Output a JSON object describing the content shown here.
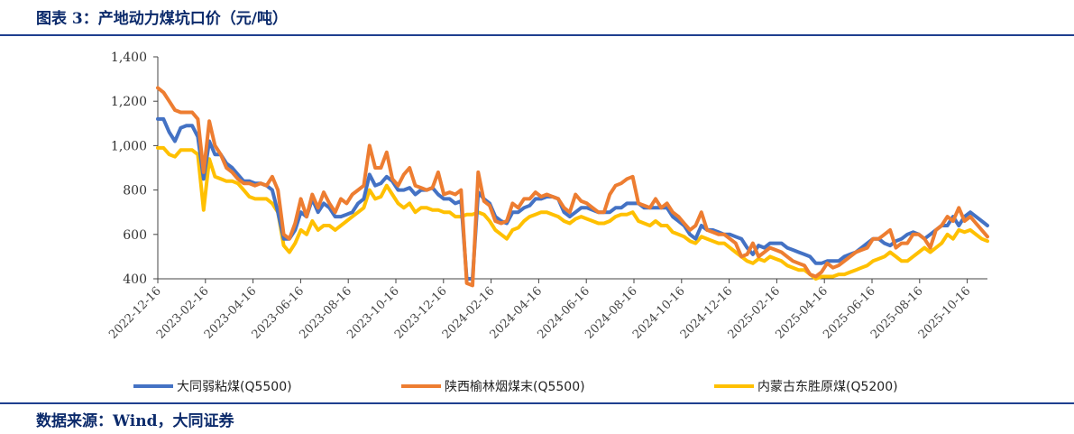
{
  "header": {
    "title": "图表 3：产地动力煤坑口价（元/吨）"
  },
  "footer": {
    "source": "数据来源：Wind，大同证券"
  },
  "chart_data": {
    "type": "line",
    "title": "产地动力煤坑口价（元/吨）",
    "xlabel": "",
    "ylabel": "元/吨",
    "ylim": [
      400,
      1400
    ],
    "yticks": [
      400,
      600,
      800,
      1000,
      1200,
      1400
    ],
    "ytick_labels": [
      "400",
      "600",
      "800",
      "1,000",
      "1,200",
      "1,400"
    ],
    "x_tick_labels": [
      "2022-12-16",
      "2023-02-16",
      "2023-04-16",
      "2023-06-16",
      "2023-08-16",
      "2023-10-16",
      "2023-12-16",
      "2024-02-16",
      "2024-04-16",
      "2024-06-16",
      "2024-08-16",
      "2024-10-16",
      "2024-12-16",
      "2025-02-16",
      "2025-04-16",
      "2025-06-16",
      "2025-08-16",
      "2025-10-16"
    ],
    "grid": false,
    "legend_position": "bottom",
    "series": [
      {
        "name": "大同弱粘煤(Q5500)",
        "color": "#4472c4",
        "values": [
          1120,
          1120,
          1060,
          1020,
          1080,
          1090,
          1090,
          1040,
          850,
          1020,
          960,
          960,
          920,
          900,
          870,
          840,
          840,
          830,
          830,
          820,
          800,
          700,
          580,
          580,
          620,
          700,
          680,
          760,
          700,
          740,
          720,
          680,
          680,
          690,
          700,
          740,
          760,
          870,
          820,
          830,
          860,
          840,
          800,
          800,
          810,
          780,
          800,
          800,
          810,
          780,
          760,
          760,
          740,
          750,
          400,
          400,
          790,
          760,
          740,
          680,
          660,
          650,
          700,
          700,
          720,
          730,
          760,
          760,
          770,
          770,
          760,
          700,
          680,
          700,
          720,
          720,
          710,
          700,
          700,
          700,
          720,
          720,
          740,
          740,
          740,
          720,
          720,
          720,
          720,
          720,
          680,
          660,
          640,
          600,
          580,
          640,
          620,
          620,
          610,
          600,
          600,
          590,
          580,
          540,
          510,
          550,
          540,
          560,
          560,
          560,
          540,
          530,
          520,
          510,
          500,
          470,
          470,
          480,
          480,
          480,
          500,
          510,
          520,
          540,
          560,
          580,
          580,
          560,
          550,
          570,
          580,
          600,
          610,
          600,
          580,
          600,
          620,
          640,
          640,
          680,
          640,
          680,
          700,
          680,
          660,
          640
        ]
      },
      {
        "name": "陕西榆林烟煤末(Q5500)",
        "color": "#ed7d31",
        "values": [
          1260,
          1240,
          1200,
          1160,
          1150,
          1150,
          1150,
          1120,
          880,
          1110,
          1000,
          960,
          900,
          880,
          850,
          830,
          830,
          820,
          830,
          820,
          860,
          800,
          600,
          580,
          650,
          760,
          680,
          780,
          720,
          790,
          740,
          700,
          760,
          740,
          780,
          800,
          820,
          1000,
          900,
          900,
          970,
          850,
          820,
          870,
          900,
          820,
          810,
          800,
          810,
          880,
          780,
          790,
          780,
          800,
          380,
          370,
          880,
          750,
          730,
          660,
          650,
          660,
          740,
          720,
          760,
          760,
          790,
          770,
          780,
          770,
          760,
          720,
          700,
          780,
          750,
          740,
          720,
          700,
          700,
          780,
          820,
          830,
          850,
          860,
          740,
          730,
          720,
          760,
          720,
          740,
          700,
          680,
          650,
          620,
          640,
          700,
          620,
          610,
          600,
          600,
          580,
          560,
          500,
          510,
          560,
          500,
          520,
          540,
          530,
          520,
          500,
          480,
          470,
          460,
          420,
          410,
          430,
          470,
          450,
          460,
          480,
          500,
          520,
          530,
          540,
          580,
          580,
          600,
          620,
          540,
          560,
          560,
          600,
          600,
          580,
          540,
          620,
          640,
          680,
          660,
          720,
          660,
          680,
          650,
          620,
          590
        ]
      },
      {
        "name": "内蒙古东胜原煤(Q5200)",
        "color": "#ffc000",
        "values": [
          990,
          990,
          960,
          950,
          980,
          980,
          980,
          960,
          710,
          940,
          860,
          850,
          840,
          840,
          830,
          800,
          770,
          760,
          760,
          760,
          740,
          700,
          550,
          520,
          560,
          620,
          600,
          660,
          620,
          640,
          640,
          620,
          640,
          660,
          680,
          700,
          720,
          800,
          760,
          770,
          820,
          780,
          740,
          720,
          740,
          700,
          720,
          720,
          710,
          710,
          700,
          700,
          680,
          680,
          690,
          690,
          700,
          690,
          660,
          620,
          600,
          580,
          620,
          630,
          660,
          680,
          690,
          700,
          700,
          690,
          680,
          660,
          650,
          670,
          680,
          670,
          660,
          650,
          650,
          660,
          680,
          690,
          690,
          700,
          660,
          650,
          640,
          660,
          640,
          640,
          610,
          600,
          590,
          570,
          560,
          590,
          580,
          570,
          560,
          560,
          540,
          520,
          500,
          480,
          470,
          490,
          480,
          500,
          490,
          480,
          460,
          450,
          440,
          440,
          420,
          400,
          410,
          410,
          410,
          420,
          420,
          430,
          440,
          450,
          460,
          480,
          490,
          500,
          520,
          500,
          480,
          480,
          500,
          520,
          540,
          520,
          540,
          560,
          600,
          580,
          620,
          610,
          620,
          600,
          580,
          570
        ]
      }
    ]
  }
}
